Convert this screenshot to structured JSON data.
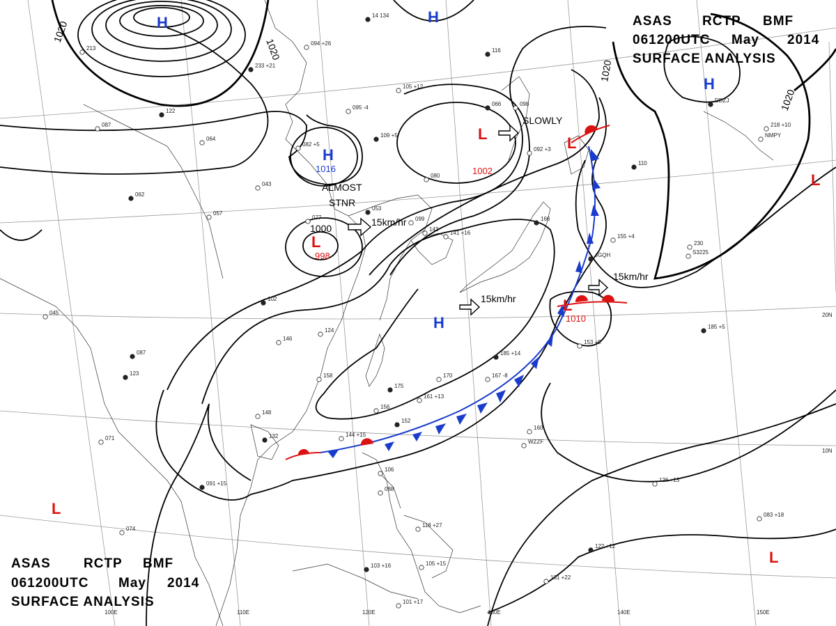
{
  "header": {
    "line1": [
      "ASAS",
      "RCTP",
      "BMF"
    ],
    "line2": [
      "061200UTC",
      "May",
      "2014"
    ],
    "line3": "SURFACE ANALYSIS"
  },
  "isobar_labels": {
    "top_left": "1020",
    "top_center": "1020",
    "right_upper": "1020",
    "right_far": "1020"
  },
  "lat_labels": [
    "20N",
    "10N"
  ],
  "lon_labels": [
    "100E",
    "110E",
    "120E",
    "130E",
    "140E",
    "150E"
  ],
  "pressure_centers": [
    {
      "id": "h-north-west",
      "type": "H",
      "value": "",
      "color": "#1a3ccc"
    },
    {
      "id": "h-north-center",
      "type": "H",
      "value": "",
      "color": "#1a3ccc"
    },
    {
      "id": "h-northeast",
      "type": "H",
      "value": "",
      "color": "#1a3ccc"
    },
    {
      "id": "h-china",
      "type": "H",
      "value": "1016",
      "color": "#1a3ccc"
    },
    {
      "id": "l-north",
      "type": "L",
      "value": "1002",
      "color": "#dd1111"
    },
    {
      "id": "l-china-south",
      "type": "L",
      "value": "998",
      "color": "#dd1111"
    },
    {
      "id": "l-northeast-front",
      "type": "L",
      "value": "",
      "color": "#dd1111"
    },
    {
      "id": "l-far-east",
      "type": "L",
      "value": "",
      "color": "#dd1111"
    },
    {
      "id": "l-pacific",
      "type": "L",
      "value": "1010",
      "color": "#dd1111"
    },
    {
      "id": "h-philippine-sea",
      "type": "H",
      "value": "",
      "color": "#1a3ccc"
    },
    {
      "id": "l-west",
      "type": "L",
      "value": "",
      "color": "#dd1111"
    },
    {
      "id": "l-southeast",
      "type": "L",
      "value": "",
      "color": "#dd1111"
    }
  ],
  "annotations": {
    "almost": "ALMOST",
    "stnr": "STNR",
    "isobar_1000": "1000",
    "slowly": "SLOWLY",
    "motion_a": "15km/hr",
    "motion_b": "15km/hr",
    "motion_c": "15km/hr"
  },
  "colors": {
    "high": "#1a3ccc",
    "low": "#dd1111",
    "cold_front": "#1a3ccc",
    "warm_front": "#dd1111"
  },
  "stations": [
    "14 134",
    "213",
    "094 +26",
    "233 +21",
    "095 -4",
    "105 +12",
    "066",
    "098",
    "087",
    "122",
    "064",
    "082 +5",
    "109 +5",
    "080",
    "092 +3",
    "116",
    "143",
    "043",
    "062",
    "057",
    "077",
    "053",
    "099",
    "141 +16",
    "166",
    "155 +4",
    "230",
    "102",
    "124",
    "146",
    "087",
    "045",
    "158",
    "175",
    "170",
    "161 +13",
    "185 +14",
    "167 -8",
    "153 +9",
    "185 +5",
    "160",
    "148",
    "132",
    "144 +15",
    "156",
    "152",
    "106",
    "088",
    "091 +15",
    "071",
    "074",
    "123",
    "118 +27",
    "105 +15",
    "103 +16",
    "101 +17",
    "131 +22",
    "122 +12",
    "126 +13",
    "083 +18",
    "110",
    "218 +10",
    "S3225",
    "JGQH",
    "WZZF",
    "NMPY",
    "DDZJ"
  ]
}
